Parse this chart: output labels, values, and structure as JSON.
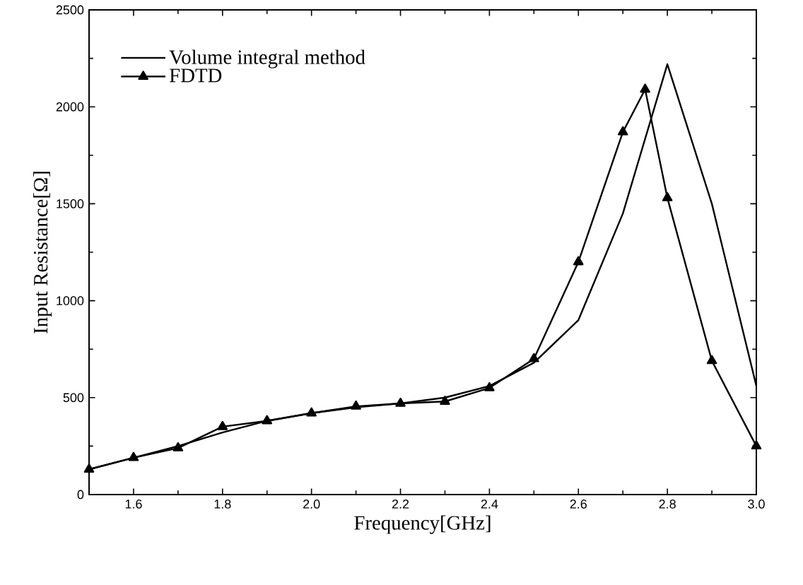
{
  "chart_data": {
    "type": "line",
    "xlabel": "Frequency[GHz]",
    "ylabel": "Input Resistance[Ω]",
    "xlim": [
      1.5,
      3.0
    ],
    "xticks": [
      1.6,
      1.8,
      {
        "value": 2.0,
        "label": "2.0"
      },
      2.2,
      2.4,
      2.6,
      2.8,
      {
        "value": 3.0,
        "label": "3.0"
      }
    ],
    "ylim": [
      0,
      2500
    ],
    "yticks": [
      0,
      500,
      1000,
      1500,
      2000,
      2500
    ],
    "legend": "top left",
    "grid": false,
    "series": [
      {
        "name": "Volume integral method",
        "color": "#000000",
        "marker": "none",
        "x": [
          1.5,
          1.6,
          1.7,
          1.8,
          1.9,
          2.0,
          2.1,
          2.2,
          2.3,
          2.4,
          2.5,
          2.6,
          2.7,
          2.8,
          2.9,
          3.0
        ],
        "values": [
          130,
          190,
          250,
          320,
          380,
          420,
          450,
          470,
          500,
          560,
          680,
          900,
          1450,
          2220,
          1500,
          560
        ]
      },
      {
        "name": "FDTD",
        "color": "#000000",
        "marker": "triangle",
        "x": [
          1.5,
          1.6,
          1.7,
          1.8,
          1.9,
          2.0,
          2.1,
          2.2,
          2.3,
          2.4,
          2.5,
          2.6,
          2.7,
          2.75,
          2.8,
          2.9,
          3.0
        ],
        "values": [
          130,
          190,
          240,
          350,
          380,
          420,
          455,
          470,
          480,
          550,
          700,
          1200,
          1870,
          2090,
          1530,
          690,
          250
        ]
      }
    ]
  }
}
